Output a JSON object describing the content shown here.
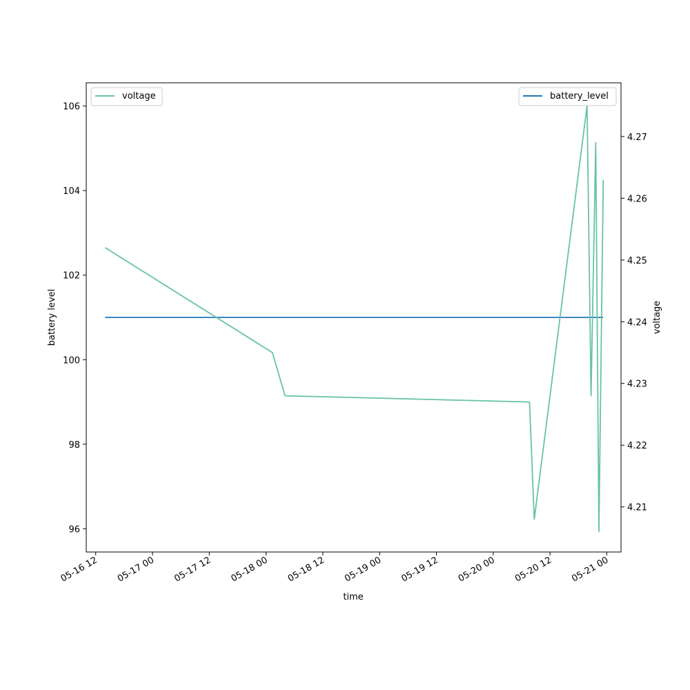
{
  "chart_data": {
    "type": "line",
    "title": "",
    "xlabel": "time",
    "ylabel_left": "battery level",
    "ylabel_right": "voltage",
    "x_ticks": [
      "05-16 12",
      "05-17 00",
      "05-17 12",
      "05-18 00",
      "05-18 12",
      "05-19 00",
      "05-19 12",
      "05-20 00",
      "05-20 12",
      "05-21 00"
    ],
    "x_range": [
      "2024-05-16 10:00",
      "2024-05-21 03:00"
    ],
    "y_left_ticks": [
      96,
      98,
      100,
      102,
      104,
      106
    ],
    "y_left_range": [
      95.45,
      106.55
    ],
    "y_right_ticks": [
      4.21,
      4.22,
      4.23,
      4.24,
      4.25,
      4.26,
      4.27
    ],
    "y_right_range": [
      4.2027,
      4.2787
    ],
    "grid": false,
    "series": [
      {
        "name": "battery_level",
        "axis": "left",
        "color": "#1f77b4",
        "legend_position": "upper-right",
        "points": [
          {
            "x": "2024-05-16 14:00",
            "y": 101
          },
          {
            "x": "2024-05-20 23:15",
            "y": 101
          }
        ]
      },
      {
        "name": "voltage",
        "axis": "right",
        "color": "#66c2a5",
        "legend_position": "upper-left",
        "points": [
          {
            "x": "2024-05-16 14:00",
            "y": 4.252
          },
          {
            "x": "2024-05-18 01:20",
            "y": 4.235
          },
          {
            "x": "2024-05-18 04:00",
            "y": 4.228
          },
          {
            "x": "2024-05-20 07:40",
            "y": 4.227
          },
          {
            "x": "2024-05-20 08:40",
            "y": 4.208
          },
          {
            "x": "2024-05-20 19:50",
            "y": 4.275
          },
          {
            "x": "2024-05-20 20:40",
            "y": 4.228
          },
          {
            "x": "2024-05-20 21:40",
            "y": 4.269
          },
          {
            "x": "2024-05-20 22:20",
            "y": 4.206
          },
          {
            "x": "2024-05-20 23:15",
            "y": 4.263
          }
        ]
      }
    ]
  }
}
